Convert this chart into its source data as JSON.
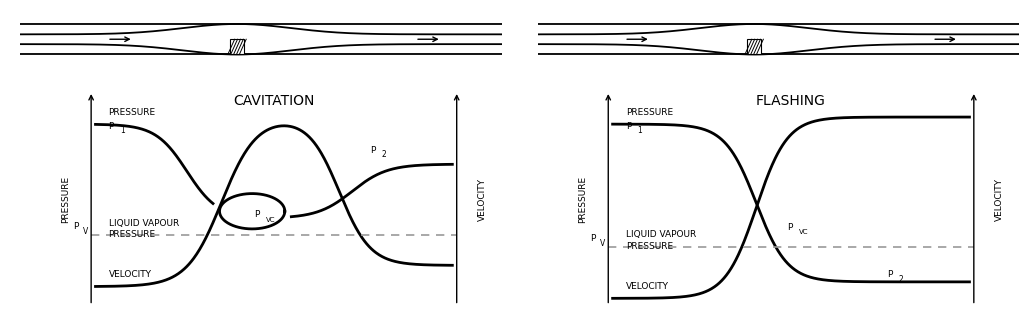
{
  "bg_color": "#ffffff",
  "line_color": "#000000",
  "dashed_color": "#999999",
  "title_cavitation": "CAVITATION",
  "title_flashing": "FLASHING",
  "ylabel_left": "PRESSURE",
  "ylabel_right": "VELOCITY",
  "label_pressure": "PRESSURE",
  "label_p1": "P",
  "label_p1_sub": "1",
  "label_pv": "P",
  "label_pv_sub": "V",
  "label_pvc": "P",
  "label_pvc_sub": "VC",
  "label_p2": "P",
  "label_p2_sub": "2",
  "label_liq_vapour": "LIQUID VAPOUR",
  "label_liq_pressure": "PRESSURE",
  "label_velocity": "VELOCITY",
  "font_size_title": 10,
  "font_size_label": 6.5,
  "font_size_axis": 6.5,
  "lw_main": 2.0,
  "lw_thin": 1.0,
  "lw_pipe": 1.3
}
